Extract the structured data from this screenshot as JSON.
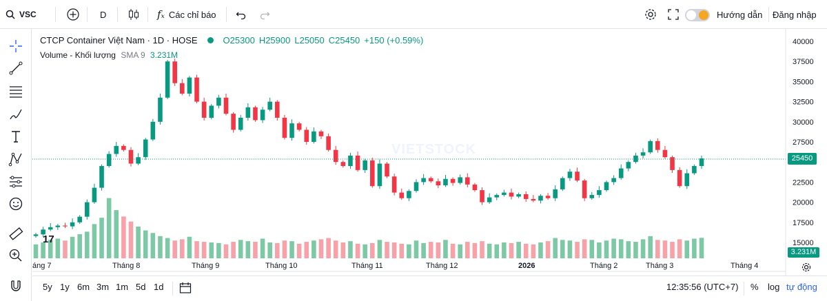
{
  "toolbar": {
    "symbol": "VSC",
    "interval": "D",
    "indicators_label": "Các chỉ báo",
    "guide_label": "Hướng dẫn",
    "login_label": "Đăng nhập"
  },
  "legend": {
    "title": "CTCP Container Việt Nam · 1D · HOSE",
    "o": "O25300",
    "h": "H25900",
    "l": "L25050",
    "c": "C25450",
    "change": "+150 (+0.59%)",
    "volume_title": "Volume - Khối lượng",
    "volume_sma": "SMA 9",
    "volume_value": "3.231M"
  },
  "watermark": "VIETSTOCK",
  "price_axis": [
    "40000",
    "37500",
    "35000",
    "32500",
    "30000",
    "27500",
    "25000",
    "22500",
    "20000",
    "17500",
    "15000"
  ],
  "last_price_label": "25450",
  "last_volume_label": "3.231M",
  "time_axis": [
    "áng 7",
    "Tháng 8",
    "Tháng 9",
    "Tháng 10",
    "Tháng 11",
    "Tháng 12",
    "2026",
    "Tháng 2",
    "Tháng 3",
    "Tháng 4"
  ],
  "ranges": [
    "5y",
    "1y",
    "6m",
    "3m",
    "1m",
    "5d",
    "1d"
  ],
  "bottom": {
    "time": "12:35:56 (UTC+7)",
    "percent": "%",
    "log": "log",
    "auto": "tự động"
  },
  "colors": {
    "up": "#089981",
    "down": "#f23645",
    "vol_up": "#7ec9a5",
    "vol_down": "#f7a2a8"
  },
  "chart_data": {
    "type": "candlestick",
    "ylim": [
      14000,
      41000
    ],
    "last_price": 25450,
    "close_series": [
      16000,
      16600,
      16900,
      17100,
      17000,
      17500,
      18200,
      20000,
      21800,
      24500,
      26000,
      27000,
      26500,
      24800,
      25600,
      27800,
      30000,
      33000,
      37500,
      34800,
      33500,
      35500,
      32500,
      30500,
      32000,
      33000,
      31000,
      29000,
      30500,
      31800,
      30200,
      31500,
      32500,
      30500,
      28000,
      29800,
      29000,
      27500,
      28800,
      28200,
      26500,
      25000,
      24500,
      25800,
      24000,
      25200,
      22000,
      24800,
      23200,
      21200,
      20500,
      21400,
      22500,
      23000,
      22600,
      22100,
      22900,
      22400,
      23100,
      22200,
      21500,
      20000,
      20600,
      20900,
      21200,
      20700,
      21000,
      20400,
      20200,
      20800,
      20500,
      21600,
      23000,
      23800,
      22700,
      20500,
      20900,
      21500,
      22500,
      23000,
      24200,
      25000,
      25800,
      26200,
      27600,
      26500,
      25600,
      24000,
      22000,
      23600,
      24500,
      25450
    ],
    "volume_series": [
      2.2,
      2.5,
      2.9,
      3.1,
      2.8,
      3.4,
      3.8,
      4.2,
      5.4,
      6.4,
      9.5,
      7.6,
      6.6,
      5.8,
      5.0,
      4.4,
      4.0,
      3.5,
      3.2,
      2.8,
      3.0,
      3.4,
      2.7,
      2.6,
      2.5,
      2.4,
      2.2,
      2.6,
      2.9,
      2.7,
      2.6,
      3.1,
      2.5,
      2.4,
      2.8,
      2.7,
      2.3,
      2.6,
      2.8,
      3.0,
      3.2,
      2.8,
      2.5,
      2.7,
      2.3,
      2.2,
      2.4,
      2.9,
      2.6,
      2.5,
      2.3,
      2.2,
      2.8,
      2.4,
      2.6,
      2.5,
      2.9,
      2.3,
      2.2,
      2.6,
      2.4,
      2.7,
      2.3,
      2.2,
      2.5,
      2.4,
      2.6,
      2.3,
      2.2,
      2.5,
      2.7,
      3.2,
      2.9,
      2.8,
      2.6,
      3.0,
      2.9,
      2.5,
      2.8,
      3.1,
      3.0,
      2.7,
      2.6,
      3.0,
      3.5,
      2.9,
      2.8,
      2.6,
      3.0,
      2.8,
      3.1,
      3.231
    ]
  }
}
